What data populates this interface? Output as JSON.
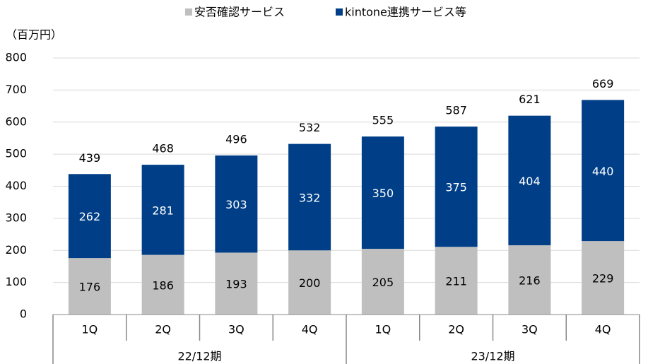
{
  "chart_data": {
    "type": "stacked_bar",
    "ylabel": "（百万円）",
    "categories": [
      "1Q",
      "2Q",
      "3Q",
      "4Q",
      "1Q",
      "2Q",
      "3Q",
      "4Q"
    ],
    "groups": [
      "22/12期",
      "23/12期"
    ],
    "series": [
      {
        "name": "安否確認サービス",
        "color": "#bfbfbf",
        "values": [
          176,
          186,
          193,
          200,
          205,
          211,
          216,
          229
        ]
      },
      {
        "name": "kintone連携サービス等",
        "color": "#003f87",
        "values": [
          262,
          281,
          303,
          332,
          350,
          375,
          404,
          440
        ]
      }
    ],
    "totals": [
      439,
      468,
      496,
      532,
      555,
      587,
      621,
      669
    ],
    "ylim": [
      0,
      800
    ],
    "yticks": [
      0,
      100,
      200,
      300,
      400,
      500,
      600,
      700,
      800
    ],
    "grid": true,
    "legend": "top"
  }
}
